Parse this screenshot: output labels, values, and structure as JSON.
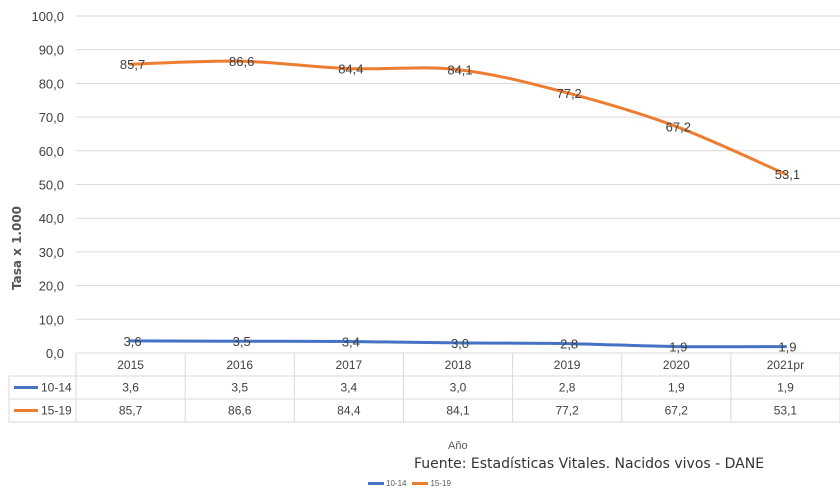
{
  "chart_data": {
    "type": "line",
    "categories": [
      "2015",
      "2016",
      "2017",
      "2018",
      "2019",
      "2020",
      "2021pr"
    ],
    "series": [
      {
        "name": "10-14",
        "color": "#4472C4",
        "values": [
          3.6,
          3.5,
          3.4,
          3.0,
          2.8,
          1.9,
          1.9
        ],
        "labels": [
          "3,6",
          "3,5",
          "3,4",
          "3,0",
          "2,8",
          "1,9",
          "1,9"
        ]
      },
      {
        "name": "15-19",
        "color": "#ED7D31",
        "values": [
          85.7,
          86.6,
          84.4,
          84.1,
          77.2,
          67.2,
          53.1
        ],
        "labels": [
          "85,7",
          "86,6",
          "84,4",
          "84,1",
          "77,2",
          "67,2",
          "53,1"
        ]
      }
    ],
    "ylabel": "Tasa x 1.000",
    "xlabel": "Año",
    "ylim": [
      0,
      100
    ],
    "yticks": [
      "0,0",
      "10,0",
      "20,0",
      "30,0",
      "40,0",
      "50,0",
      "60,0",
      "70,0",
      "80,0",
      "90,0",
      "100,0"
    ],
    "grid": true,
    "data_table": true,
    "legend": "bottom",
    "source": "Fuente: Estadísticas Vitales. Nacidos vivos - DANE"
  }
}
